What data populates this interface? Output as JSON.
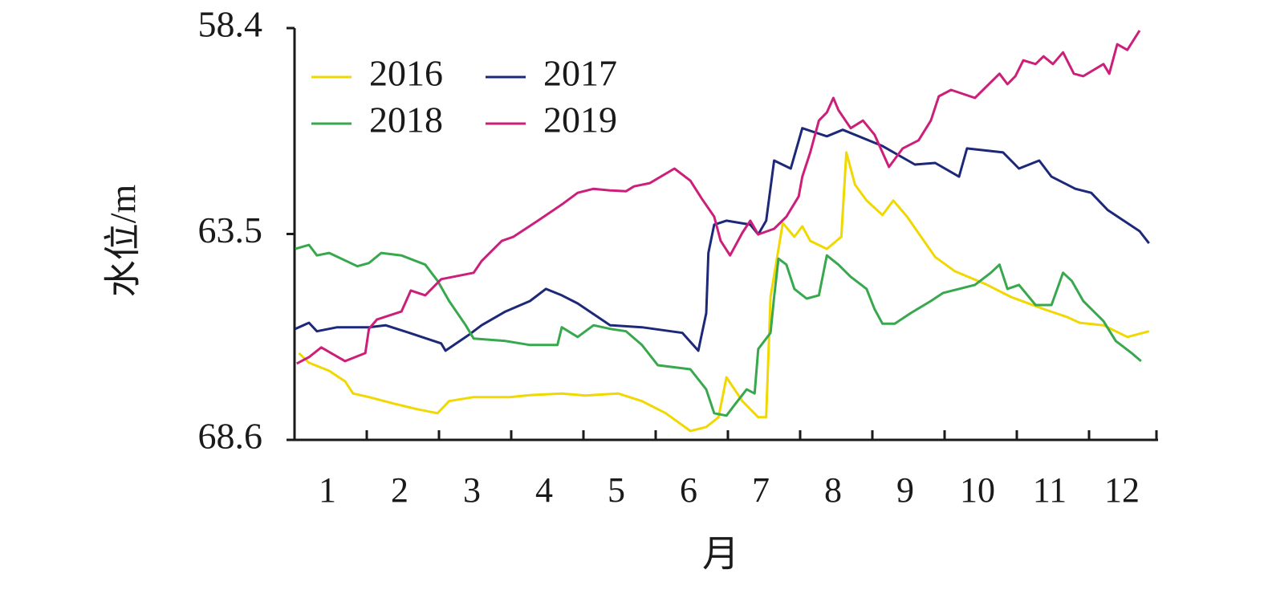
{
  "chart_data": {
    "type": "line",
    "x_label": "月",
    "y_label": "水位/m",
    "xlim": [
      0,
      12
    ],
    "xticks": [
      {
        "value": 0.5,
        "label": "1"
      },
      {
        "value": 1.5,
        "label": "2"
      },
      {
        "value": 2.5,
        "label": "3"
      },
      {
        "value": 3.5,
        "label": "4"
      },
      {
        "value": 4.5,
        "label": "5"
      },
      {
        "value": 5.5,
        "label": "6"
      },
      {
        "value": 6.5,
        "label": "7"
      },
      {
        "value": 7.5,
        "label": "8"
      },
      {
        "value": 8.5,
        "label": "9"
      },
      {
        "value": 9.5,
        "label": "10"
      },
      {
        "value": 10.5,
        "label": "11"
      },
      {
        "value": 11.5,
        "label": "12"
      }
    ],
    "ylim": [
      68.6,
      58.4
    ],
    "yticks": [
      58.4,
      63.5,
      68.6
    ],
    "legend": "upper left",
    "series": [
      {
        "name": "2016",
        "color": "#f0d800",
        "x": [
          0.06,
          0.2,
          0.48,
          0.7,
          0.81,
          1.03,
          1.37,
          1.7,
          1.98,
          2.14,
          2.48,
          2.98,
          3.26,
          3.7,
          4.03,
          4.48,
          4.81,
          5.14,
          5.48,
          5.7,
          5.87,
          5.98,
          6.2,
          6.42,
          6.53,
          6.59,
          6.76,
          6.92,
          7.03,
          7.14,
          7.37,
          7.57,
          7.64,
          7.76,
          7.92,
          8.14,
          8.29,
          8.48,
          8.87,
          9.14,
          9.59,
          9.92,
          10.37,
          10.7,
          10.87,
          11.2,
          11.53,
          11.83
        ],
        "values": [
          66.45,
          66.69,
          66.89,
          67.15,
          67.45,
          67.54,
          67.7,
          67.84,
          67.94,
          67.64,
          67.54,
          67.54,
          67.49,
          67.45,
          67.5,
          67.45,
          67.64,
          67.94,
          68.38,
          68.28,
          68.04,
          67.05,
          67.64,
          68.04,
          68.04,
          65.06,
          63.23,
          63.57,
          63.31,
          63.67,
          63.87,
          63.57,
          61.48,
          62.28,
          62.67,
          63.03,
          62.67,
          63.07,
          64.07,
          64.42,
          64.76,
          65.06,
          65.36,
          65.56,
          65.7,
          65.76,
          66.05,
          65.91
        ]
      },
      {
        "name": "2017",
        "color": "#1c2878",
        "x": [
          0.01,
          0.2,
          0.31,
          0.59,
          1.03,
          1.26,
          1.59,
          2.03,
          2.09,
          2.42,
          2.59,
          2.92,
          3.26,
          3.48,
          3.7,
          3.92,
          4.37,
          4.81,
          5.37,
          5.59,
          5.7,
          5.73,
          5.81,
          5.98,
          6.31,
          6.42,
          6.53,
          6.64,
          6.87,
          7.03,
          7.37,
          7.59,
          8.14,
          8.59,
          8.87,
          9.2,
          9.31,
          9.81,
          10.03,
          10.31,
          10.48,
          10.81,
          11.03,
          11.26,
          11.48,
          11.7,
          11.83
        ],
        "values": [
          65.85,
          65.7,
          65.91,
          65.81,
          65.81,
          65.76,
          65.95,
          66.21,
          66.39,
          65.99,
          65.76,
          65.42,
          65.16,
          64.86,
          65.02,
          65.22,
          65.76,
          65.81,
          65.95,
          66.39,
          65.46,
          63.97,
          63.27,
          63.17,
          63.27,
          63.51,
          63.17,
          61.68,
          61.88,
          60.88,
          61.08,
          60.92,
          61.32,
          61.78,
          61.74,
          62.08,
          61.38,
          61.48,
          61.88,
          61.68,
          62.08,
          62.38,
          62.48,
          62.91,
          63.17,
          63.43,
          63.73
        ]
      },
      {
        "name": "2018",
        "color": "#38a84e",
        "x": [
          0.01,
          0.2,
          0.31,
          0.48,
          0.87,
          1.03,
          1.2,
          1.48,
          1.81,
          1.98,
          2.14,
          2.37,
          2.48,
          2.92,
          3.26,
          3.64,
          3.7,
          3.92,
          4.14,
          4.37,
          4.59,
          4.81,
          5.03,
          5.48,
          5.7,
          5.81,
          5.98,
          6.09,
          6.26,
          6.37,
          6.42,
          6.59,
          6.64,
          6.7,
          6.81,
          6.92,
          7.09,
          7.26,
          7.37,
          7.53,
          7.7,
          7.92,
          8.03,
          8.14,
          8.31,
          8.53,
          8.81,
          8.98,
          9.42,
          9.64,
          9.76,
          9.87,
          10.03,
          10.26,
          10.48,
          10.64,
          10.76,
          10.92,
          11.2,
          11.37,
          11.59,
          11.72
        ],
        "values": [
          63.87,
          63.77,
          64.03,
          63.97,
          64.3,
          64.22,
          63.97,
          64.03,
          64.26,
          64.66,
          65.16,
          65.76,
          66.09,
          66.15,
          66.25,
          66.25,
          65.81,
          66.05,
          65.76,
          65.85,
          65.91,
          66.25,
          66.75,
          66.85,
          67.35,
          67.94,
          68.0,
          67.74,
          67.35,
          67.45,
          66.35,
          65.95,
          65.06,
          64.11,
          64.26,
          64.86,
          65.1,
          65.02,
          64.03,
          64.26,
          64.56,
          64.86,
          65.36,
          65.72,
          65.72,
          65.46,
          65.16,
          64.96,
          64.76,
          64.46,
          64.26,
          64.86,
          64.76,
          65.26,
          65.26,
          64.46,
          64.66,
          65.16,
          65.66,
          66.15,
          66.45,
          66.65
        ]
      },
      {
        "name": "2019",
        "color": "#cc1f7a",
        "x": [
          0.03,
          0.2,
          0.37,
          0.7,
          0.98,
          1.03,
          1.14,
          1.48,
          1.61,
          1.81,
          2.03,
          2.48,
          2.59,
          2.87,
          3.03,
          3.37,
          3.7,
          3.92,
          4.14,
          4.37,
          4.59,
          4.7,
          4.92,
          5.26,
          5.48,
          5.64,
          5.81,
          5.9,
          6.03,
          6.2,
          6.31,
          6.42,
          6.64,
          6.81,
          6.98,
          7.03,
          7.14,
          7.26,
          7.37,
          7.46,
          7.53,
          7.7,
          7.87,
          8.03,
          8.23,
          8.42,
          8.64,
          8.81,
          8.92,
          9.09,
          9.42,
          9.76,
          9.87,
          9.98,
          10.09,
          10.26,
          10.37,
          10.5,
          10.64,
          10.79,
          10.92,
          11.2,
          11.28,
          11.39,
          11.53,
          11.7
        ],
        "values": [
          66.71,
          66.55,
          66.31,
          66.65,
          66.45,
          65.85,
          65.62,
          65.42,
          64.9,
          65.02,
          64.62,
          64.46,
          64.17,
          63.67,
          63.57,
          63.17,
          62.77,
          62.48,
          62.38,
          62.42,
          62.44,
          62.32,
          62.24,
          61.88,
          62.18,
          62.63,
          63.07,
          63.67,
          64.03,
          63.47,
          63.17,
          63.51,
          63.37,
          63.07,
          62.57,
          62.08,
          61.48,
          60.69,
          60.49,
          60.13,
          60.43,
          60.88,
          60.69,
          61.04,
          61.84,
          61.38,
          61.18,
          60.69,
          60.09,
          59.93,
          60.13,
          59.53,
          59.79,
          59.59,
          59.2,
          59.29,
          59.1,
          59.29,
          59.0,
          59.53,
          59.59,
          59.29,
          59.53,
          58.8,
          58.94,
          58.46
        ]
      }
    ]
  }
}
